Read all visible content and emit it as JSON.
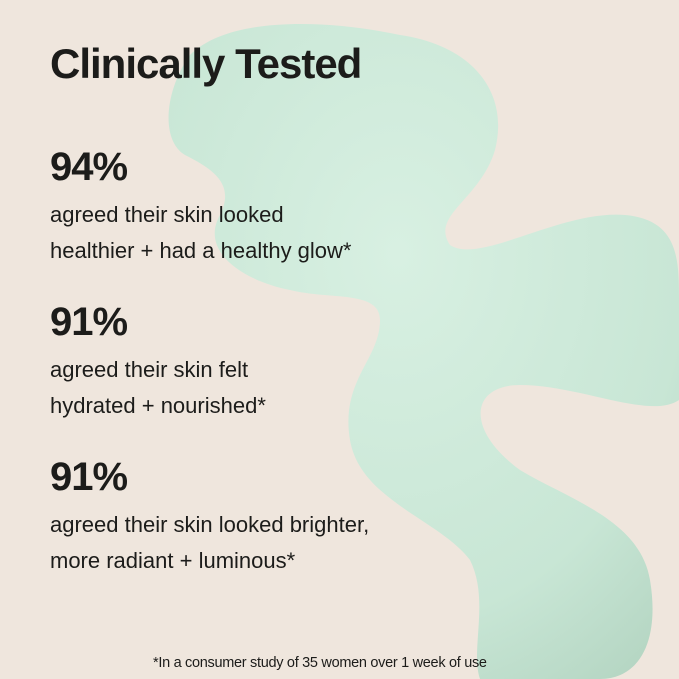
{
  "title": "Clinically Tested",
  "stats": [
    {
      "value": "94%",
      "line1": "agreed their skin looked",
      "line2": "healthier + had a healthy glow*"
    },
    {
      "value": "91%",
      "line1": "agreed their skin felt",
      "line2": "hydrated + nourished*"
    },
    {
      "value": "91%",
      "line1": "agreed their skin looked brighter,",
      "line2": "more radiant + luminous*"
    }
  ],
  "footnote": "*In a consumer study of 35 women over 1 week of use",
  "colors": {
    "background": "#efe6dd",
    "blob": "#cfeadb",
    "text": "#1c1c1a"
  }
}
